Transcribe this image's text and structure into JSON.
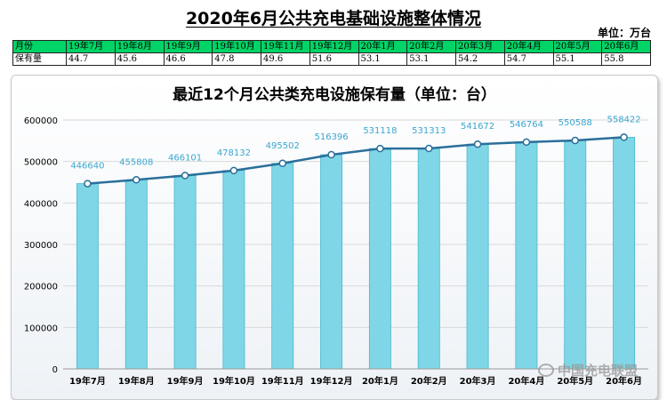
{
  "header": {
    "title": "2020年6月公共充电基础设施整体情况",
    "unit": "单位：万台"
  },
  "table": {
    "row_header_month": "月份",
    "row_header_value": "保有量",
    "months": [
      "19年7月",
      "19年8月",
      "19年9月",
      "19年10月",
      "19年11月",
      "19年12月",
      "20年1月",
      "20年2月",
      "20年3月",
      "20年4月",
      "20年5月",
      "20年6月"
    ],
    "values": [
      "44.7",
      "45.6",
      "46.6",
      "47.8",
      "49.6",
      "51.6",
      "53.1",
      "53.1",
      "54.2",
      "54.7",
      "55.1",
      "55.8"
    ]
  },
  "chart_data": {
    "type": "bar",
    "title": "最近12个月公共类充电设施保有量（单位：台）",
    "categories": [
      "19年7月",
      "19年8月",
      "19年9月",
      "19年10月",
      "19年11月",
      "19年12月",
      "20年1月",
      "20年2月",
      "20年3月",
      "20年4月",
      "20年5月",
      "20年6月"
    ],
    "values": [
      446640,
      455808,
      466101,
      478132,
      495502,
      516396,
      531118,
      531313,
      541672,
      546764,
      550588,
      558422
    ],
    "overlay_line": true,
    "ylim": [
      0,
      600000
    ],
    "yticks": [
      0,
      100000,
      200000,
      300000,
      400000,
      500000,
      600000
    ],
    "grid": true,
    "legend": "none",
    "colors": {
      "bar": "#7fd6e6",
      "bar_edge": "#4ab8d0",
      "line": "#2a6f9b",
      "label": "#3aa6cf"
    }
  },
  "watermark": "中国充电联盟",
  "watermark_icon": "wechat-icon"
}
